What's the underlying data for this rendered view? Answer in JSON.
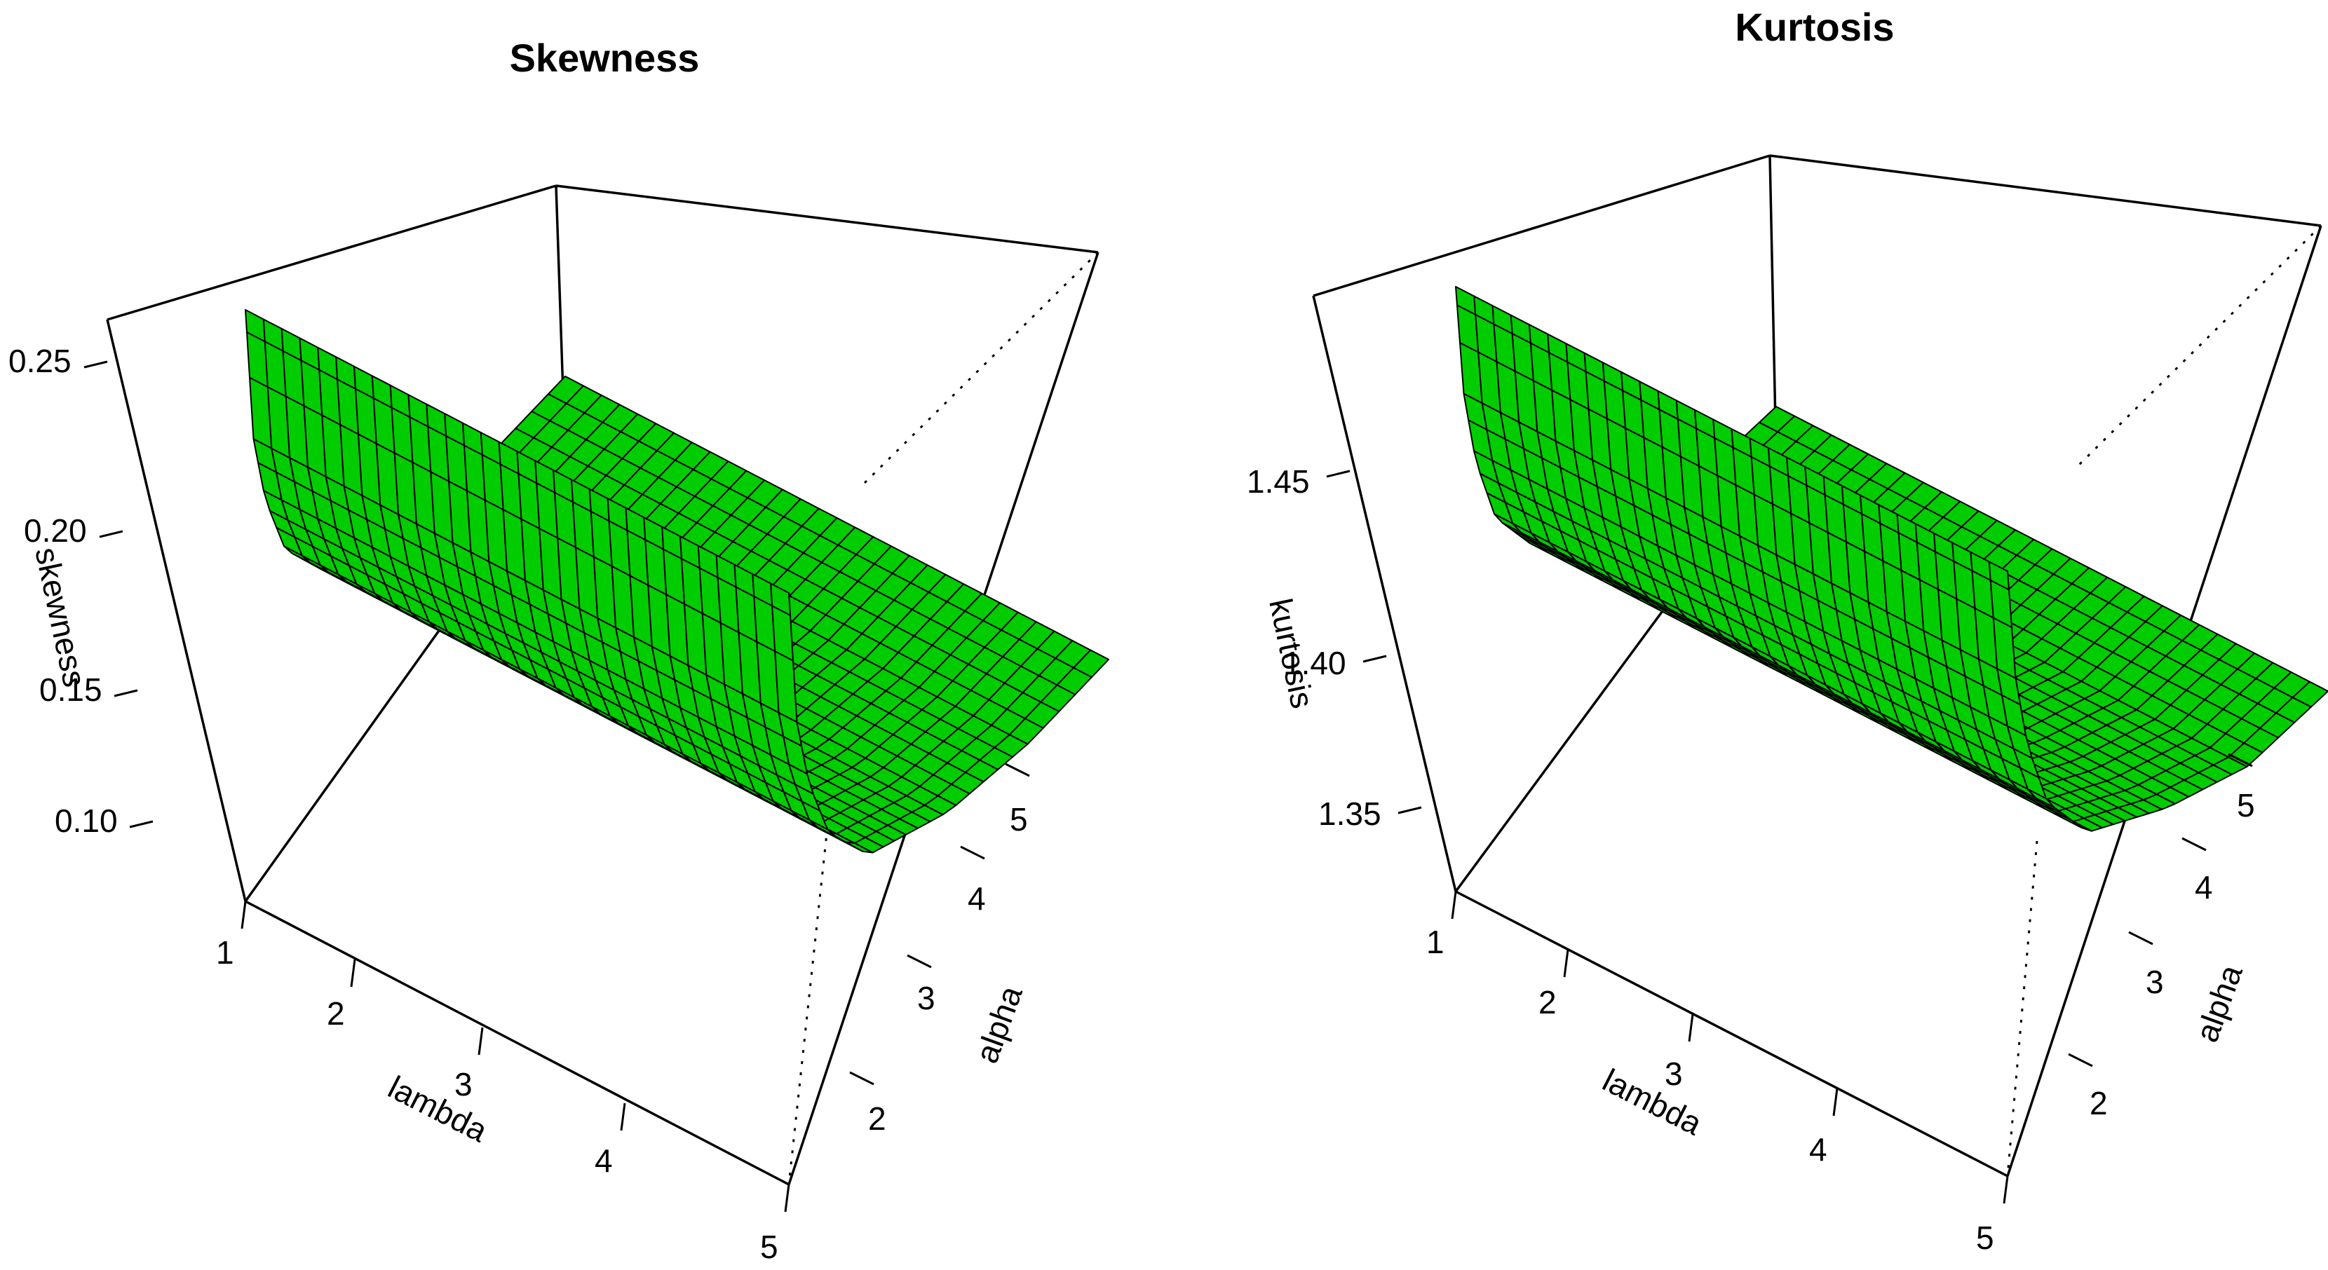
{
  "chart_data": [
    {
      "type": "surface",
      "title": "Skewness",
      "xlabel": "lambda",
      "ylabel": "alpha",
      "zlabel": "skewness",
      "x_ticks": [
        "1",
        "2",
        "3",
        "4",
        "5"
      ],
      "y_ticks": [
        "2",
        "3",
        "4",
        "5"
      ],
      "z_ticks": [
        "0.10",
        "0.15",
        "0.20",
        "0.25"
      ],
      "xlim": [
        1,
        5
      ],
      "ylim": [
        1,
        5
      ],
      "zlim": [
        0.07,
        0.26
      ],
      "surface_color": "#00cc00",
      "profile": {
        "description_axis": "alpha",
        "alpha": [
          1.0,
          1.1,
          1.25,
          1.5,
          2.0,
          3.0,
          4.0,
          5.0
        ],
        "values": [
          0.26,
          0.215,
          0.19,
          0.165,
          0.14,
          0.118,
          0.104,
          0.095
        ]
      },
      "lambda_effect": "none"
    },
    {
      "type": "surface",
      "title": "Kurtosis",
      "xlabel": "lambda",
      "ylabel": "alpha",
      "zlabel": "kurtosis",
      "x_ticks": [
        "1",
        "2",
        "3",
        "4",
        "5"
      ],
      "y_ticks": [
        "2",
        "3",
        "4",
        "5"
      ],
      "z_ticks": [
        "1.35",
        "1.40",
        "1.45"
      ],
      "xlim": [
        1,
        5
      ],
      "ylim": [
        1,
        5
      ],
      "zlim": [
        1.32,
        1.5
      ],
      "surface_color": "#00cc00",
      "profile": {
        "description_axis": "alpha",
        "alpha": [
          1.0,
          1.1,
          1.25,
          1.5,
          2.0,
          3.0,
          4.0,
          5.0
        ],
        "values": [
          1.5,
          1.465,
          1.44,
          1.415,
          1.39,
          1.365,
          1.345,
          1.335
        ]
      },
      "lambda_effect": "none"
    }
  ]
}
